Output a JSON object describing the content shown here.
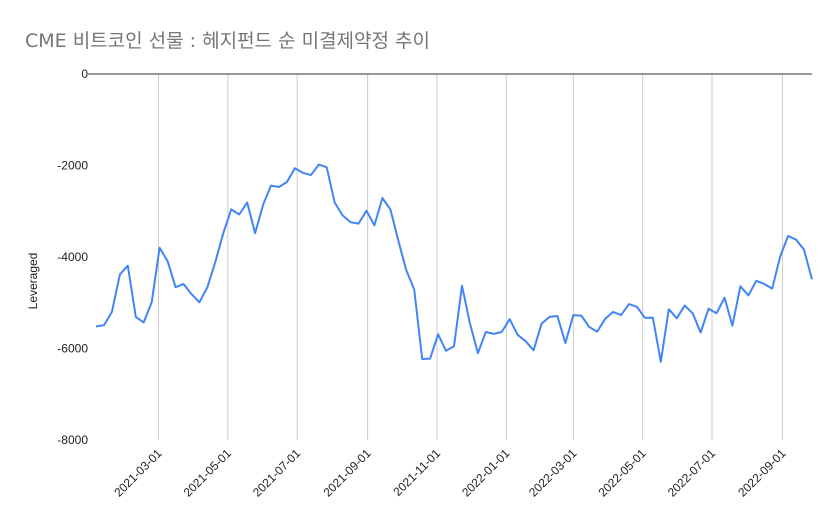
{
  "title": "CME 비트코인 선물 : 헤지펀드 순 미결제약정 추이",
  "chart_data": {
    "type": "line",
    "title": "CME 비트코인 선물 : 헤지펀드 순 미결제약정 추이",
    "xlabel": "",
    "ylabel": "Leveraged",
    "x_axis": "date",
    "xlim": [
      "2021-01-05",
      "2022-09-27"
    ],
    "ylim": [
      -8000,
      0
    ],
    "y_ticks": [
      0,
      -2000,
      -4000,
      -6000,
      -8000
    ],
    "y_tick_labels": [
      "0",
      "-2000",
      "-4000",
      "-6000",
      "-8000"
    ],
    "x_ticks": [
      "2021-03-01",
      "2021-05-01",
      "2021-07-01",
      "2021-09-01",
      "2021-11-01",
      "2022-01-01",
      "2022-03-01",
      "2022-05-01",
      "2022-07-01",
      "2022-09-01"
    ],
    "x_tick_labels": [
      "2021-03-01",
      "2021-05-01",
      "2021-07-01",
      "2021-09-01",
      "2021-11-01",
      "2022-01-01",
      "2022-03-01",
      "2022-05-01",
      "2022-07-01",
      "2022-09-01"
    ],
    "grid": "vertical",
    "legend": "none",
    "colors": {
      "line": "#4285f4",
      "grid": "#cccccc",
      "axis": "#333333",
      "title": "#757575"
    },
    "series": [
      {
        "x": [
          "2021-01-05",
          "2021-01-12",
          "2021-01-19",
          "2021-01-26",
          "2021-02-02",
          "2021-02-09",
          "2021-02-16",
          "2021-02-23",
          "2021-03-02",
          "2021-03-09",
          "2021-03-16",
          "2021-03-23",
          "2021-03-30",
          "2021-04-06",
          "2021-04-13",
          "2021-04-20",
          "2021-04-27",
          "2021-05-04",
          "2021-05-11",
          "2021-05-18",
          "2021-05-25",
          "2021-06-01",
          "2021-06-08",
          "2021-06-15",
          "2021-06-22",
          "2021-06-29",
          "2021-07-06",
          "2021-07-13",
          "2021-07-20",
          "2021-07-27",
          "2021-08-03",
          "2021-08-10",
          "2021-08-17",
          "2021-08-24",
          "2021-08-31",
          "2021-09-07",
          "2021-09-14",
          "2021-09-21",
          "2021-09-28",
          "2021-10-05",
          "2021-10-12",
          "2021-10-19",
          "2021-10-26",
          "2021-11-02",
          "2021-11-09",
          "2021-11-16",
          "2021-11-23",
          "2021-11-30",
          "2021-12-07",
          "2021-12-14",
          "2021-12-21",
          "2021-12-28",
          "2022-01-04",
          "2022-01-11",
          "2022-01-18",
          "2022-01-25",
          "2022-02-01",
          "2022-02-08",
          "2022-02-15",
          "2022-02-22",
          "2022-03-01",
          "2022-03-08",
          "2022-03-15",
          "2022-03-22",
          "2022-03-29",
          "2022-04-05",
          "2022-04-12",
          "2022-04-19",
          "2022-04-26",
          "2022-05-03",
          "2022-05-10",
          "2022-05-17",
          "2022-05-24",
          "2022-05-31",
          "2022-06-07",
          "2022-06-14",
          "2022-06-21",
          "2022-06-28",
          "2022-07-05",
          "2022-07-12",
          "2022-07-19",
          "2022-07-26",
          "2022-08-02",
          "2022-08-09",
          "2022-08-16",
          "2022-08-23",
          "2022-08-30",
          "2022-09-06",
          "2022-09-13",
          "2022-09-20",
          "2022-09-27"
        ],
        "y": [
          -5520,
          -5490,
          -5200,
          -4380,
          -4190,
          -5310,
          -5430,
          -4990,
          -3800,
          -4090,
          -4660,
          -4590,
          -4810,
          -4990,
          -4660,
          -4110,
          -3480,
          -2960,
          -3070,
          -2810,
          -3480,
          -2860,
          -2440,
          -2470,
          -2360,
          -2060,
          -2160,
          -2210,
          -1980,
          -2040,
          -2810,
          -3090,
          -3240,
          -3270,
          -2990,
          -3310,
          -2710,
          -2960,
          -3640,
          -4290,
          -4710,
          -6230,
          -6220,
          -5690,
          -6050,
          -5950,
          -4630,
          -5450,
          -6100,
          -5640,
          -5680,
          -5640,
          -5360,
          -5700,
          -5840,
          -6040,
          -5460,
          -5310,
          -5290,
          -5880,
          -5270,
          -5280,
          -5530,
          -5630,
          -5350,
          -5200,
          -5270,
          -5030,
          -5090,
          -5330,
          -5330,
          -6290,
          -5140,
          -5340,
          -5060,
          -5230,
          -5650,
          -5130,
          -5230,
          -4890,
          -5500,
          -4640,
          -4840,
          -4520,
          -4590,
          -4690,
          -3990,
          -3540,
          -3620,
          -3840,
          -4490
        ]
      }
    ]
  }
}
